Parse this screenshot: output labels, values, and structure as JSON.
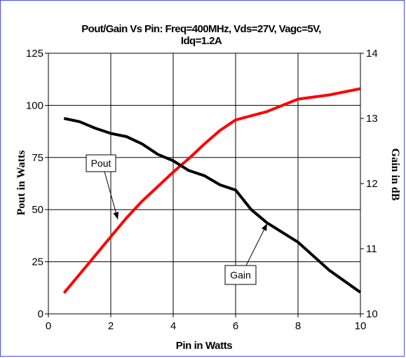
{
  "chart_data": {
    "type": "line",
    "title_line1": "Pout/Gain Vs Pin: Freq=400MHz, Vds=27V, Vagc=5V,",
    "title_line2": "Idq=1.2A",
    "xlabel": "Pin in Watts",
    "ylabel_left": "Pout  in Watts",
    "ylabel_right": "Gain in dB",
    "xlim": [
      0,
      10
    ],
    "ylim_left": [
      0,
      125
    ],
    "ylim_right": [
      10,
      14
    ],
    "x_ticks": [
      "0",
      "2",
      "4",
      "6",
      "8",
      "10"
    ],
    "y_left_ticks": [
      "0",
      "25",
      "50",
      "75",
      "100",
      "125"
    ],
    "y_right_ticks": [
      "10",
      "11",
      "12",
      "13",
      "14"
    ],
    "grid": true,
    "series": [
      {
        "name": "Pout",
        "axis": "left",
        "color": "#ff0000",
        "points": [
          [
            0.5,
            10
          ],
          [
            1,
            19
          ],
          [
            1.5,
            28
          ],
          [
            2,
            37
          ],
          [
            2.5,
            46
          ],
          [
            3,
            54
          ],
          [
            3.5,
            61
          ],
          [
            4,
            68
          ],
          [
            4.5,
            74.5
          ],
          [
            5,
            81.5
          ],
          [
            5.5,
            88
          ],
          [
            6,
            93
          ],
          [
            7,
            97
          ],
          [
            8,
            103
          ],
          [
            9,
            105
          ],
          [
            10,
            108
          ]
        ]
      },
      {
        "name": "Gain",
        "axis": "right",
        "color": "#000000",
        "points": [
          [
            0.5,
            13.0
          ],
          [
            1,
            12.95
          ],
          [
            1.5,
            12.85
          ],
          [
            2,
            12.77
          ],
          [
            2.5,
            12.72
          ],
          [
            3,
            12.61
          ],
          [
            3.5,
            12.45
          ],
          [
            4,
            12.35
          ],
          [
            4.5,
            12.2
          ],
          [
            5,
            12.12
          ],
          [
            5.5,
            11.98
          ],
          [
            6,
            11.9
          ],
          [
            6.5,
            11.6
          ],
          [
            7,
            11.4
          ],
          [
            8,
            11.1
          ],
          [
            9,
            10.67
          ],
          [
            10,
            10.33
          ]
        ]
      }
    ],
    "annotations": [
      {
        "text": "Pout",
        "series": "Pout"
      },
      {
        "text": "Gain",
        "series": "Gain"
      }
    ]
  }
}
